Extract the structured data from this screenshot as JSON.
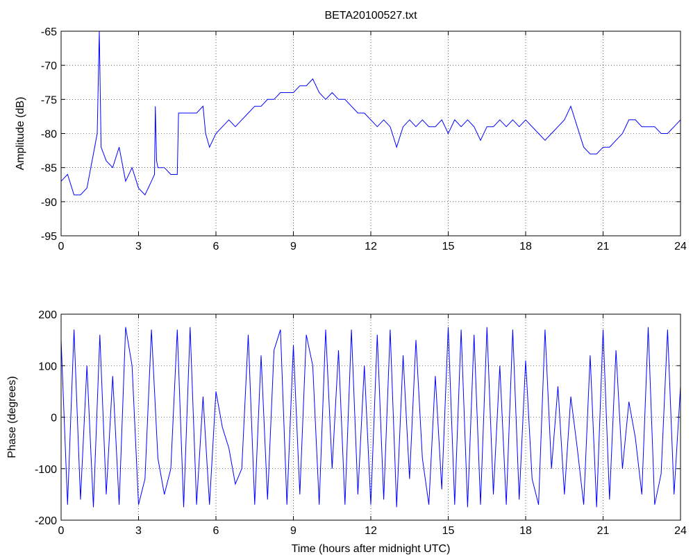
{
  "chart_data": [
    {
      "type": "line",
      "title": "BETA20100527.txt",
      "ylabel": "Amplitude (dB)",
      "xlim": [
        0,
        24
      ],
      "xticks": [
        0,
        3,
        6,
        9,
        12,
        15,
        18,
        21,
        24
      ],
      "ylim": [
        -95,
        -65
      ],
      "yticks": [
        -95,
        -90,
        -85,
        -80,
        -75,
        -70,
        -65
      ],
      "grid": true,
      "series": [
        {
          "name": "Amplitude",
          "color": "#0000ff",
          "x": [
            0,
            0.25,
            0.5,
            0.75,
            1,
            1.25,
            1.4,
            1.48,
            1.55,
            1.75,
            2,
            2.25,
            2.5,
            2.75,
            3,
            3.25,
            3.5,
            3.62,
            3.65,
            3.7,
            3.75,
            4,
            4.25,
            4.5,
            4.55,
            4.75,
            5,
            5.25,
            5.5,
            5.6,
            5.75,
            6,
            6.25,
            6.5,
            6.75,
            7,
            7.25,
            7.5,
            7.75,
            8,
            8.25,
            8.5,
            8.75,
            9,
            9.25,
            9.5,
            9.75,
            10,
            10.25,
            10.5,
            10.75,
            11,
            11.25,
            11.5,
            11.75,
            12,
            12.25,
            12.5,
            12.75,
            13,
            13.25,
            13.5,
            13.75,
            14,
            14.25,
            14.5,
            14.75,
            15,
            15.25,
            15.5,
            15.75,
            16,
            16.25,
            16.5,
            16.75,
            17,
            17.25,
            17.5,
            17.75,
            18,
            18.25,
            18.5,
            18.75,
            19,
            19.25,
            19.5,
            19.75,
            20,
            20.25,
            20.5,
            20.75,
            21,
            21.25,
            21.5,
            21.75,
            22,
            22.25,
            22.5,
            22.75,
            23,
            23.25,
            23.5,
            23.75,
            24
          ],
          "values": [
            -87,
            -86,
            -89,
            -89,
            -88,
            -83,
            -80,
            -65,
            -82,
            -84,
            -85,
            -82,
            -87,
            -85,
            -88,
            -89,
            -87,
            -86,
            -76,
            -84,
            -85,
            -85,
            -86,
            -86,
            -77,
            -77,
            -77,
            -77,
            -76,
            -80,
            -82,
            -80,
            -79,
            -78,
            -79,
            -78,
            -77,
            -76,
            -76,
            -75,
            -75,
            -74,
            -74,
            -74,
            -73,
            -73,
            -72,
            -74,
            -75,
            -74,
            -75,
            -75,
            -76,
            -77,
            -77,
            -78,
            -79,
            -78,
            -79,
            -82,
            -79,
            -78,
            -79,
            -78,
            -79,
            -79,
            -78,
            -80,
            -78,
            -79,
            -78,
            -79,
            -81,
            -79,
            -79,
            -78,
            -79,
            -78,
            -79,
            -78,
            -79,
            -80,
            -81,
            -80,
            -79,
            -78,
            -76,
            -79,
            -82,
            -83,
            -83,
            -82,
            -82,
            -81,
            -80,
            -78,
            -78,
            -79,
            -79,
            -79,
            -80,
            -80,
            -79,
            -78
          ]
        }
      ]
    },
    {
      "type": "line",
      "xlabel": "Time (hours after midnight UTC)",
      "ylabel": "Phase (degrees)",
      "xlim": [
        0,
        24
      ],
      "xticks": [
        0,
        3,
        6,
        9,
        12,
        15,
        18,
        21,
        24
      ],
      "ylim": [
        -200,
        200
      ],
      "yticks": [
        -200,
        -100,
        0,
        100,
        200
      ],
      "grid": true,
      "series": [
        {
          "name": "Phase",
          "color": "#0000ff",
          "x": [
            0,
            0.25,
            0.5,
            0.75,
            1,
            1.25,
            1.5,
            1.75,
            2,
            2.25,
            2.5,
            2.75,
            3,
            3.25,
            3.5,
            3.75,
            4,
            4.25,
            4.5,
            4.75,
            5,
            5.25,
            5.5,
            5.75,
            6,
            6.25,
            6.5,
            6.75,
            7,
            7.25,
            7.5,
            7.75,
            8,
            8.25,
            8.5,
            8.75,
            9,
            9.25,
            9.5,
            9.75,
            10,
            10.25,
            10.5,
            10.75,
            11,
            11.25,
            11.5,
            11.75,
            12,
            12.25,
            12.5,
            12.75,
            13,
            13.25,
            13.5,
            13.75,
            14,
            14.25,
            14.5,
            14.75,
            15,
            15.25,
            15.5,
            15.75,
            16,
            16.25,
            16.5,
            16.75,
            17,
            17.25,
            17.5,
            17.75,
            18,
            18.25,
            18.5,
            18.75,
            19,
            19.25,
            19.5,
            19.75,
            20,
            20.25,
            20.5,
            20.75,
            21,
            21.25,
            21.5,
            21.75,
            22,
            22.25,
            22.5,
            22.75,
            23,
            23.25,
            23.5,
            23.75,
            24
          ],
          "values": [
            150,
            -170,
            170,
            -160,
            100,
            -175,
            160,
            -150,
            80,
            -170,
            175,
            100,
            -170,
            -120,
            170,
            -80,
            -150,
            -100,
            170,
            -175,
            175,
            -170,
            40,
            -170,
            50,
            -20,
            -60,
            -130,
            -100,
            160,
            -170,
            120,
            -160,
            130,
            170,
            -170,
            140,
            -150,
            160,
            100,
            -170,
            170,
            -100,
            130,
            -170,
            170,
            -150,
            100,
            -170,
            160,
            -160,
            170,
            -175,
            120,
            -120,
            150,
            -80,
            -170,
            80,
            -140,
            175,
            -170,
            170,
            -175,
            160,
            -170,
            175,
            -150,
            100,
            -170,
            170,
            -160,
            110,
            -120,
            -170,
            170,
            -100,
            60,
            -150,
            40,
            -60,
            -170,
            120,
            -175,
            170,
            -160,
            130,
            -100,
            30,
            -40,
            -150,
            175,
            -170,
            -110,
            170,
            -150,
            60
          ]
        }
      ]
    }
  ]
}
